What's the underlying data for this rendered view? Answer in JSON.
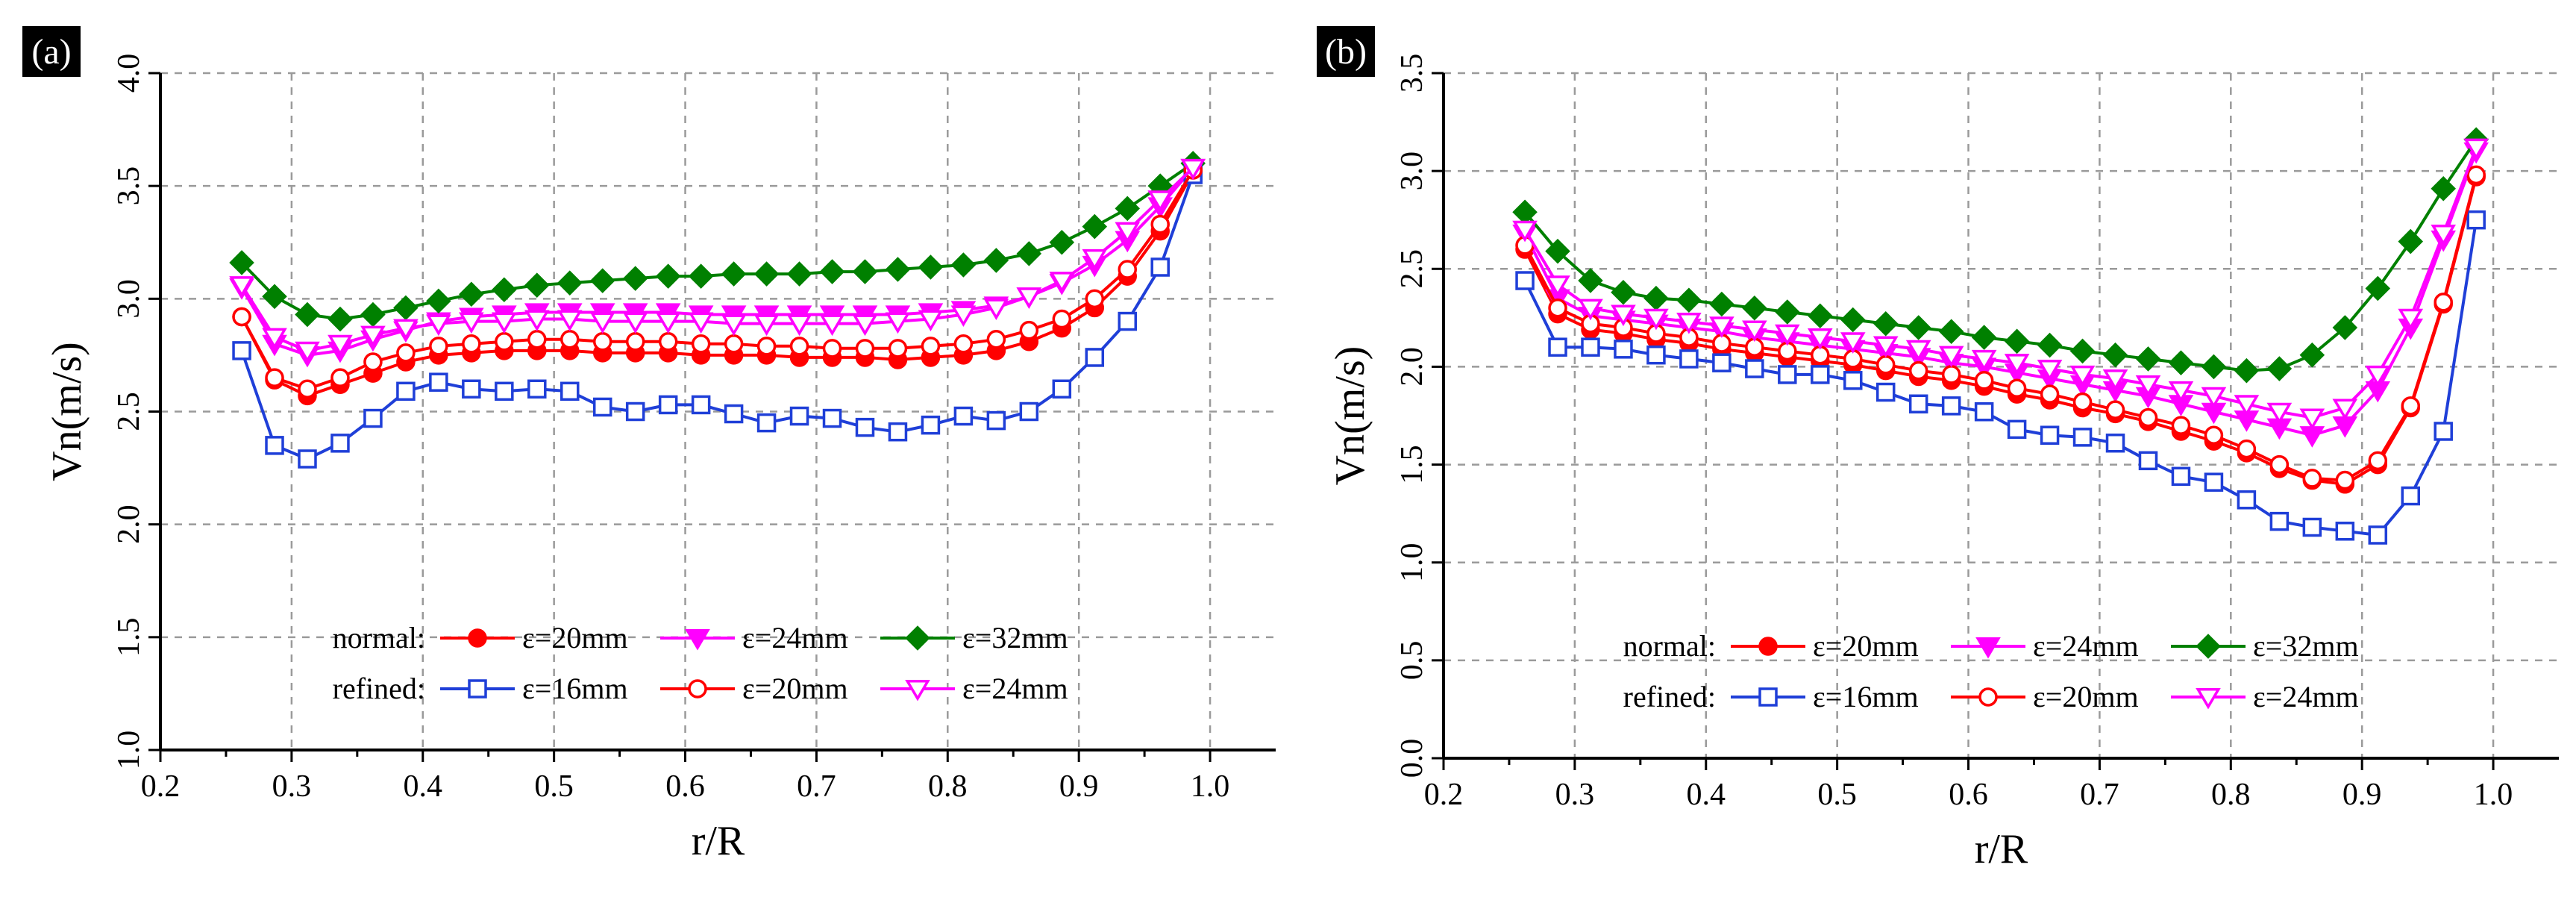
{
  "chart_data": [
    {
      "type": "line",
      "panel_label": "(a)",
      "xlabel": "r/R",
      "ylabel": "Vn(m/s)",
      "xlim": [
        0.2,
        1.05
      ],
      "ylim": [
        1.0,
        4.0
      ],
      "xticks": [
        "0.2",
        "0.3",
        "0.4",
        "0.5",
        "0.6",
        "0.7",
        "0.8",
        "0.9",
        "1.0"
      ],
      "yticks": [
        "1.0",
        "1.5",
        "2.0",
        "2.5",
        "3.0",
        "3.5",
        "4.0"
      ],
      "grid": true,
      "legend": {
        "position": "bottom-center",
        "rows": [
          {
            "label": "normal:",
            "entries": [
              "ε=20mm",
              "ε=24mm",
              "ε=32mm"
            ]
          },
          {
            "label": "refined:",
            "entries": [
              "ε=16mm",
              "ε=20mm",
              "ε=24mm"
            ]
          }
        ]
      },
      "x": [
        0.262,
        0.287,
        0.312,
        0.337,
        0.362,
        0.387,
        0.412,
        0.437,
        0.462,
        0.487,
        0.512,
        0.537,
        0.562,
        0.587,
        0.612,
        0.637,
        0.662,
        0.687,
        0.712,
        0.737,
        0.762,
        0.787,
        0.812,
        0.837,
        0.862,
        0.887,
        0.912,
        0.937,
        0.962,
        0.987
      ],
      "series": [
        {
          "group": "normal",
          "label": "ε=20mm",
          "color": "#ff0000",
          "marker": "circle",
          "filled": true,
          "values": [
            2.92,
            2.64,
            2.57,
            2.62,
            2.67,
            2.72,
            2.75,
            2.76,
            2.77,
            2.77,
            2.77,
            2.76,
            2.76,
            2.76,
            2.75,
            2.75,
            2.75,
            2.74,
            2.74,
            2.74,
            2.73,
            2.74,
            2.75,
            2.77,
            2.81,
            2.87,
            2.96,
            3.1,
            3.3,
            3.56
          ]
        },
        {
          "group": "normal",
          "label": "ε=24mm",
          "color": "#ff00ff",
          "marker": "triangle-down",
          "filled": true,
          "values": [
            3.05,
            2.8,
            2.75,
            2.77,
            2.82,
            2.86,
            2.9,
            2.92,
            2.93,
            2.94,
            2.94,
            2.94,
            2.94,
            2.94,
            2.93,
            2.93,
            2.93,
            2.93,
            2.93,
            2.93,
            2.93,
            2.94,
            2.95,
            2.97,
            3.01,
            3.07,
            3.15,
            3.26,
            3.41,
            3.58
          ]
        },
        {
          "group": "normal",
          "label": "ε=32mm",
          "color": "#008000",
          "marker": "diamond",
          "filled": true,
          "values": [
            3.16,
            3.01,
            2.93,
            2.91,
            2.93,
            2.96,
            2.99,
            3.02,
            3.04,
            3.06,
            3.07,
            3.08,
            3.09,
            3.1,
            3.1,
            3.11,
            3.11,
            3.11,
            3.12,
            3.12,
            3.13,
            3.14,
            3.15,
            3.17,
            3.2,
            3.25,
            3.32,
            3.4,
            3.5,
            3.6
          ]
        },
        {
          "group": "refined",
          "label": "ε=16mm",
          "color": "#1f3fd8",
          "marker": "square",
          "filled": false,
          "values": [
            2.77,
            2.35,
            2.29,
            2.36,
            2.47,
            2.59,
            2.63,
            2.6,
            2.59,
            2.6,
            2.59,
            2.52,
            2.5,
            2.53,
            2.53,
            2.49,
            2.45,
            2.48,
            2.47,
            2.43,
            2.41,
            2.44,
            2.48,
            2.46,
            2.5,
            2.6,
            2.74,
            2.9,
            3.14,
            3.55
          ]
        },
        {
          "group": "refined",
          "label": "ε=20mm",
          "color": "#ff0000",
          "marker": "circle",
          "filled": false,
          "values": [
            2.92,
            2.65,
            2.6,
            2.65,
            2.72,
            2.76,
            2.79,
            2.8,
            2.81,
            2.82,
            2.82,
            2.81,
            2.81,
            2.81,
            2.8,
            2.8,
            2.79,
            2.79,
            2.78,
            2.78,
            2.78,
            2.79,
            2.8,
            2.82,
            2.86,
            2.91,
            3.0,
            3.13,
            3.33,
            3.57
          ]
        },
        {
          "group": "refined",
          "label": "ε=24mm",
          "color": "#ff00ff",
          "marker": "triangle-down",
          "filled": false,
          "values": [
            3.06,
            2.83,
            2.77,
            2.8,
            2.84,
            2.87,
            2.89,
            2.9,
            2.9,
            2.91,
            2.91,
            2.9,
            2.9,
            2.9,
            2.9,
            2.89,
            2.89,
            2.89,
            2.89,
            2.89,
            2.9,
            2.91,
            2.93,
            2.96,
            3.01,
            3.08,
            3.18,
            3.3,
            3.44,
            3.58
          ]
        }
      ]
    },
    {
      "type": "line",
      "panel_label": "(b)",
      "xlabel": "r/R",
      "ylabel": "Vn(m/s)",
      "xlim": [
        0.2,
        1.05
      ],
      "ylim": [
        0.0,
        3.5
      ],
      "xticks": [
        "0.2",
        "0.3",
        "0.4",
        "0.5",
        "0.6",
        "0.7",
        "0.8",
        "0.9",
        "1.0"
      ],
      "yticks": [
        "0.0",
        "0.5",
        "1.0",
        "1.5",
        "2.0",
        "2.5",
        "3.0",
        "3.5"
      ],
      "grid": true,
      "legend": {
        "position": "bottom-center",
        "rows": [
          {
            "label": "normal:",
            "entries": [
              "ε=20mm",
              "ε=24mm",
              "ε=32mm"
            ]
          },
          {
            "label": "refined:",
            "entries": [
              "ε=16mm",
              "ε=20mm",
              "ε=24mm"
            ]
          }
        ]
      },
      "x": [
        0.262,
        0.287,
        0.312,
        0.337,
        0.362,
        0.387,
        0.412,
        0.437,
        0.462,
        0.487,
        0.512,
        0.537,
        0.562,
        0.587,
        0.612,
        0.637,
        0.662,
        0.687,
        0.712,
        0.737,
        0.762,
        0.787,
        0.812,
        0.837,
        0.862,
        0.887,
        0.912,
        0.937,
        0.962,
        0.987
      ],
      "series": [
        {
          "group": "normal",
          "label": "ε=20mm",
          "color": "#ff0000",
          "marker": "circle",
          "filled": true,
          "values": [
            2.6,
            2.27,
            2.19,
            2.17,
            2.14,
            2.12,
            2.09,
            2.07,
            2.05,
            2.03,
            2.01,
            1.98,
            1.95,
            1.93,
            1.9,
            1.86,
            1.83,
            1.79,
            1.76,
            1.72,
            1.67,
            1.62,
            1.56,
            1.48,
            1.42,
            1.4,
            1.5,
            1.79,
            2.32,
            2.97
          ]
        },
        {
          "group": "normal",
          "label": "ε=24mm",
          "color": "#ff00ff",
          "marker": "triangle-down",
          "filled": true,
          "values": [
            2.68,
            2.35,
            2.26,
            2.24,
            2.22,
            2.2,
            2.18,
            2.15,
            2.13,
            2.11,
            2.09,
            2.07,
            2.05,
            2.02,
            2.0,
            1.97,
            1.94,
            1.91,
            1.88,
            1.85,
            1.81,
            1.77,
            1.73,
            1.69,
            1.65,
            1.7,
            1.88,
            2.2,
            2.65,
            3.1
          ]
        },
        {
          "group": "normal",
          "label": "ε=32mm",
          "color": "#008000",
          "marker": "diamond",
          "filled": true,
          "values": [
            2.79,
            2.59,
            2.44,
            2.38,
            2.35,
            2.34,
            2.32,
            2.3,
            2.28,
            2.26,
            2.24,
            2.22,
            2.2,
            2.18,
            2.15,
            2.13,
            2.11,
            2.08,
            2.06,
            2.04,
            2.02,
            2.0,
            1.98,
            1.99,
            2.06,
            2.2,
            2.4,
            2.64,
            2.91,
            3.16
          ]
        },
        {
          "group": "refined",
          "label": "ε=16mm",
          "color": "#1f3fd8",
          "marker": "square",
          "filled": false,
          "values": [
            2.44,
            2.1,
            2.1,
            2.09,
            2.06,
            2.04,
            2.02,
            1.99,
            1.96,
            1.96,
            1.93,
            1.87,
            1.81,
            1.8,
            1.77,
            1.68,
            1.65,
            1.64,
            1.61,
            1.52,
            1.44,
            1.41,
            1.32,
            1.21,
            1.18,
            1.16,
            1.14,
            1.34,
            1.67,
            2.75
          ]
        },
        {
          "group": "refined",
          "label": "ε=20mm",
          "color": "#ff0000",
          "marker": "circle",
          "filled": false,
          "values": [
            2.62,
            2.3,
            2.22,
            2.2,
            2.17,
            2.15,
            2.12,
            2.1,
            2.08,
            2.06,
            2.04,
            2.01,
            1.98,
            1.96,
            1.93,
            1.89,
            1.86,
            1.82,
            1.78,
            1.74,
            1.7,
            1.65,
            1.58,
            1.5,
            1.43,
            1.42,
            1.52,
            1.8,
            2.33,
            2.98
          ]
        },
        {
          "group": "refined",
          "label": "ε=24mm",
          "color": "#ff00ff",
          "marker": "triangle-down",
          "filled": false,
          "values": [
            2.7,
            2.42,
            2.3,
            2.27,
            2.25,
            2.23,
            2.21,
            2.19,
            2.17,
            2.15,
            2.13,
            2.11,
            2.09,
            2.06,
            2.04,
            2.02,
            1.99,
            1.96,
            1.94,
            1.91,
            1.88,
            1.85,
            1.81,
            1.77,
            1.74,
            1.79,
            1.96,
            2.25,
            2.68,
            3.12
          ]
        }
      ]
    }
  ]
}
